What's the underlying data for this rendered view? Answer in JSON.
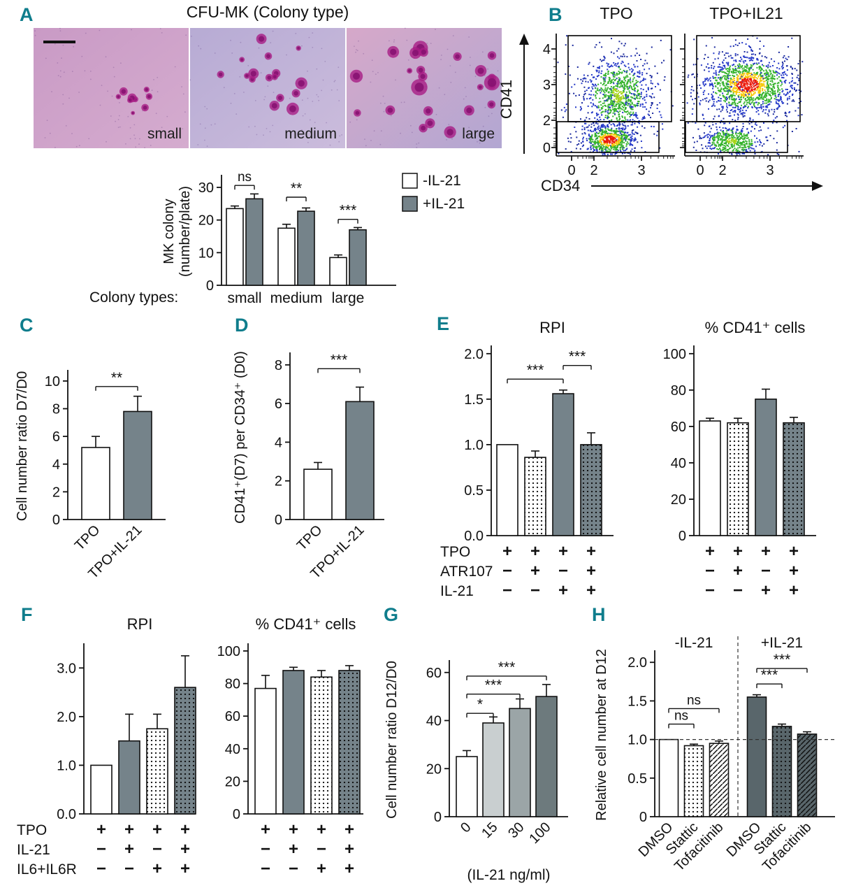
{
  "colors": {
    "panel_label": "#0f7d8c",
    "bar_gray": "#75838a",
    "bar_darkgray": "#59666b",
    "bar_lightgray": "#c9cfd0",
    "bar_midgray": "#9ba5a7",
    "bar_gray2": "#6d7a7d",
    "flow_red": "#ec1c0c",
    "flow_yellow": "#f7c808",
    "flow_yellowgreen": "#a6d415",
    "flow_green": "#35b32c",
    "flow_blue": "#2438c8",
    "flow_deepblue": "#1b2a9e"
  },
  "panels": {
    "A": {
      "label": "A",
      "title": "CFU-MK (Colony type)",
      "colony_types_label": "Colony types:",
      "images": [
        {
          "label": "small"
        },
        {
          "label": "medium"
        },
        {
          "label": "large"
        }
      ]
    },
    "B": {
      "label": "B"
    },
    "C": {
      "label": "C"
    },
    "D": {
      "label": "D"
    },
    "E": {
      "label": "E",
      "matrix": {
        "row_labels": [
          "TPO",
          "ATR107",
          "IL-21"
        ],
        "rows": [
          [
            "+",
            "+",
            "+",
            "+",
            "+",
            "+",
            "+",
            "+"
          ],
          [
            "−",
            "+",
            "−",
            "+",
            "−",
            "+",
            "−",
            "+"
          ],
          [
            "−",
            "−",
            "+",
            "+",
            "−",
            "−",
            "+",
            "+"
          ]
        ]
      }
    },
    "F": {
      "label": "F",
      "matrix": {
        "row_labels": [
          "TPO",
          "IL-21",
          "IL6+IL6R"
        ],
        "rows": [
          [
            "+",
            "+",
            "+",
            "+",
            "+",
            "+",
            "+",
            "+"
          ],
          [
            "−",
            "+",
            "−",
            "+",
            "−",
            "+",
            "−",
            "+"
          ],
          [
            "−",
            "−",
            "+",
            "+",
            "−",
            "−",
            "+",
            "+"
          ]
        ]
      }
    },
    "G": {
      "label": "G"
    },
    "H": {
      "label": "H"
    }
  },
  "chart_data": [
    {
      "id": "A",
      "type": "bar",
      "ylabel_lines": [
        "MK colony",
        "(number/plate)"
      ],
      "ylim": [
        0,
        33
      ],
      "yticks": [
        {
          "v": 0,
          "t": "0"
        },
        {
          "v": 10,
          "t": "10"
        },
        {
          "v": 20,
          "t": "20"
        },
        {
          "v": 30,
          "t": "30"
        }
      ],
      "categories": [
        "small",
        "medium",
        "large"
      ],
      "series": [
        {
          "name": "-IL-21",
          "style": "white",
          "values": [
            23.5,
            17.5,
            8.5
          ],
          "errors": [
            0.8,
            1.2,
            0.8
          ]
        },
        {
          "name": "+IL-21",
          "style": "gray",
          "values": [
            26.5,
            22.7,
            17.0
          ],
          "errors": [
            1.5,
            1.0,
            0.7
          ]
        }
      ],
      "sig": [
        {
          "cat": 0,
          "y": 30.6,
          "label": "ns"
        },
        {
          "cat": 1,
          "y": 27.0,
          "label": "**"
        },
        {
          "cat": 2,
          "y": 20.2,
          "label": "***"
        }
      ]
    },
    {
      "id": "B",
      "type": "scatter-density",
      "xlabel": "CD34",
      "ylabel": "CD41",
      "xticks": [
        "0",
        "2",
        "3"
      ],
      "yticks": [
        "4",
        "3",
        "2",
        "0"
      ],
      "plots": [
        {
          "title": "TPO",
          "clusters": [
            {
              "core": "cold",
              "cx": 0.5,
              "cy": 0.42,
              "sx": 0.3,
              "sy": 0.3,
              "n": 260
            },
            {
              "core": "warm",
              "cx": 0.52,
              "cy": 0.5,
              "sx": 0.13,
              "sy": 0.15,
              "n": 800
            },
            {
              "core": "hot",
              "cx": 0.45,
              "cy": 0.13,
              "sx": 0.11,
              "sy": 0.062,
              "n": 600
            }
          ]
        },
        {
          "title": "TPO+IL21",
          "clusters": [
            {
              "core": "cold",
              "cx": 0.5,
              "cy": 0.48,
              "sx": 0.33,
              "sy": 0.3,
              "n": 280
            },
            {
              "core": "warm",
              "cx": 0.4,
              "cy": 0.12,
              "sx": 0.12,
              "sy": 0.06,
              "n": 450
            },
            {
              "core": "hot",
              "cx": 0.53,
              "cy": 0.58,
              "sx": 0.19,
              "sy": 0.115,
              "n": 1250
            }
          ]
        }
      ]
    },
    {
      "id": "C",
      "type": "bar",
      "ylabel": "Cell number ratio D7/D0",
      "ylim": [
        0,
        10.6
      ],
      "yticks": [
        {
          "v": 0,
          "t": "0"
        },
        {
          "v": 2,
          "t": "2"
        },
        {
          "v": 4,
          "t": "4"
        },
        {
          "v": 6,
          "t": "6"
        },
        {
          "v": 8,
          "t": "8"
        },
        {
          "v": 10,
          "t": "10"
        }
      ],
      "bars": [
        {
          "label": "TPO",
          "value": 5.2,
          "error": 0.8,
          "style": "white"
        },
        {
          "label": "TPO+IL-21",
          "value": 7.8,
          "error": 1.1,
          "style": "gray"
        }
      ],
      "sig": [
        {
          "i": 0,
          "j": 1,
          "y": 9.6,
          "label": "**"
        }
      ]
    },
    {
      "id": "D",
      "type": "bar",
      "ylabel": "CD41⁺(D7) per CD34⁺ (D0)",
      "ylim": [
        0,
        8.5
      ],
      "yticks": [
        {
          "v": 0,
          "t": "0"
        },
        {
          "v": 2,
          "t": "2"
        },
        {
          "v": 4,
          "t": "4"
        },
        {
          "v": 6,
          "t": "6"
        },
        {
          "v": 8,
          "t": "8"
        }
      ],
      "bars": [
        {
          "label": "TPO",
          "value": 2.6,
          "error": 0.35,
          "style": "white"
        },
        {
          "label": "TPO+IL-21",
          "value": 6.1,
          "error": 0.75,
          "style": "gray"
        }
      ],
      "sig": [
        {
          "i": 0,
          "j": 1,
          "y": 7.8,
          "label": "***"
        }
      ]
    },
    {
      "id": "E1",
      "type": "bar",
      "title": "RPI",
      "ylim": [
        0,
        2.06
      ],
      "yticks": [
        {
          "v": 0,
          "t": "0.0"
        },
        {
          "v": 0.5,
          "t": "0.5"
        },
        {
          "v": 1,
          "t": "1.0"
        },
        {
          "v": 1.5,
          "t": "1.5"
        },
        {
          "v": 2,
          "t": "2.0"
        }
      ],
      "bars": [
        {
          "value": 1.0,
          "error": 0,
          "style": "white"
        },
        {
          "value": 0.86,
          "error": 0.07,
          "style": "dot"
        },
        {
          "value": 1.56,
          "error": 0.04,
          "style": "gray"
        },
        {
          "value": 1.0,
          "error": 0.13,
          "style": "graydot"
        }
      ],
      "sig": [
        {
          "i": 0,
          "j": 2,
          "y": 1.72,
          "label": "***"
        },
        {
          "i": 2,
          "j": 3,
          "y": 1.87,
          "label": "***"
        }
      ]
    },
    {
      "id": "E2",
      "type": "bar",
      "title": "% CD41⁺ cells",
      "ylim": [
        0,
        103
      ],
      "yticks": [
        {
          "v": 0,
          "t": "0"
        },
        {
          "v": 20,
          "t": "20"
        },
        {
          "v": 40,
          "t": "40"
        },
        {
          "v": 60,
          "t": "60"
        },
        {
          "v": 80,
          "t": "80"
        },
        {
          "v": 100,
          "t": "100"
        }
      ],
      "bars": [
        {
          "value": 63,
          "error": 1.5,
          "style": "white"
        },
        {
          "value": 62,
          "error": 2.5,
          "style": "dot"
        },
        {
          "value": 75,
          "error": 5.5,
          "style": "gray"
        },
        {
          "value": 62,
          "error": 3,
          "style": "graydot"
        }
      ],
      "sig": []
    },
    {
      "id": "F1",
      "type": "bar",
      "title": "RPI",
      "ylim": [
        0,
        3.45
      ],
      "yticks": [
        {
          "v": 0,
          "t": "0.0"
        },
        {
          "v": 1,
          "t": "1.0"
        },
        {
          "v": 2,
          "t": "2.0"
        },
        {
          "v": 3,
          "t": "3.0"
        }
      ],
      "bars": [
        {
          "value": 1.0,
          "error": 0,
          "style": "white"
        },
        {
          "value": 1.5,
          "error": 0.55,
          "style": "gray"
        },
        {
          "value": 1.75,
          "error": 0.3,
          "style": "dot"
        },
        {
          "value": 2.6,
          "error": 0.65,
          "style": "graydot"
        }
      ],
      "sig": []
    },
    {
      "id": "F2",
      "type": "bar",
      "title": "% CD41⁺ cells",
      "ylim": [
        0,
        103
      ],
      "yticks": [
        {
          "v": 0,
          "t": "0"
        },
        {
          "v": 20,
          "t": "20"
        },
        {
          "v": 40,
          "t": "40"
        },
        {
          "v": 60,
          "t": "60"
        },
        {
          "v": 80,
          "t": "80"
        },
        {
          "v": 100,
          "t": "100"
        }
      ],
      "bars": [
        {
          "value": 77,
          "error": 8,
          "style": "white"
        },
        {
          "value": 88,
          "error": 2,
          "style": "gray"
        },
        {
          "value": 84,
          "error": 4,
          "style": "dot"
        },
        {
          "value": 88,
          "error": 3,
          "style": "graydot"
        }
      ],
      "sig": []
    },
    {
      "id": "G",
      "type": "bar",
      "ylabel": "Cell number ratio D12/D0",
      "xlabel": "(IL-21 ng/ml)",
      "ylim": [
        0,
        64
      ],
      "yticks": [
        {
          "v": 0,
          "t": "0"
        },
        {
          "v": 20,
          "t": "20"
        },
        {
          "v": 40,
          "t": "40"
        },
        {
          "v": 60,
          "t": "60"
        }
      ],
      "bars": [
        {
          "label": "0",
          "value": 25,
          "error": 2.5,
          "style": "white"
        },
        {
          "label": "15",
          "value": 39,
          "error": 2.5,
          "style": "lightgray"
        },
        {
          "label": "30",
          "value": 45,
          "error": 4,
          "style": "midgray"
        },
        {
          "label": "100",
          "value": 50,
          "error": 5,
          "style": "gray2"
        }
      ],
      "sig": [
        {
          "i": 0,
          "j": 1,
          "y": 43,
          "label": "*"
        },
        {
          "i": 0,
          "j": 2,
          "y": 51,
          "label": "***"
        },
        {
          "i": 0,
          "j": 3,
          "y": 58.5,
          "label": "***"
        }
      ]
    },
    {
      "id": "H",
      "type": "bar",
      "ylabel": "Relative cell number at D12",
      "ylim": [
        0,
        2.12
      ],
      "yticks": [
        {
          "v": 0,
          "t": "0"
        },
        {
          "v": 0.5,
          "t": "0.5"
        },
        {
          "v": 1,
          "t": "1.0"
        },
        {
          "v": 1.5,
          "t": "1.5"
        },
        {
          "v": 2,
          "t": "2.0"
        }
      ],
      "group_titles": [
        "-IL-21",
        "+IL-21"
      ],
      "hline": 1.0,
      "bars": [
        {
          "label": "DMSO",
          "value": 1.0,
          "error": 0,
          "style": "white"
        },
        {
          "label": "Stattic",
          "value": 0.92,
          "error": 0.02,
          "style": "dot"
        },
        {
          "label": "Tofacitinib",
          "value": 0.95,
          "error": 0.03,
          "style": "hatch"
        },
        {
          "label": "DMSO",
          "value": 1.55,
          "error": 0.03,
          "style": "darkgray"
        },
        {
          "label": "Stattic",
          "value": 1.17,
          "error": 0.03,
          "style": "darkdot"
        },
        {
          "label": "Tofacitinib",
          "value": 1.07,
          "error": 0.03,
          "style": "darkhatch"
        }
      ],
      "sig": [
        {
          "i": 0,
          "j": 1,
          "y": 1.2,
          "label": "ns"
        },
        {
          "i": 0,
          "j": 2,
          "y": 1.4,
          "label": "ns"
        },
        {
          "i": 3,
          "j": 4,
          "y": 1.72,
          "label": "***"
        },
        {
          "i": 3,
          "j": 5,
          "y": 1.92,
          "label": "***"
        }
      ]
    }
  ]
}
